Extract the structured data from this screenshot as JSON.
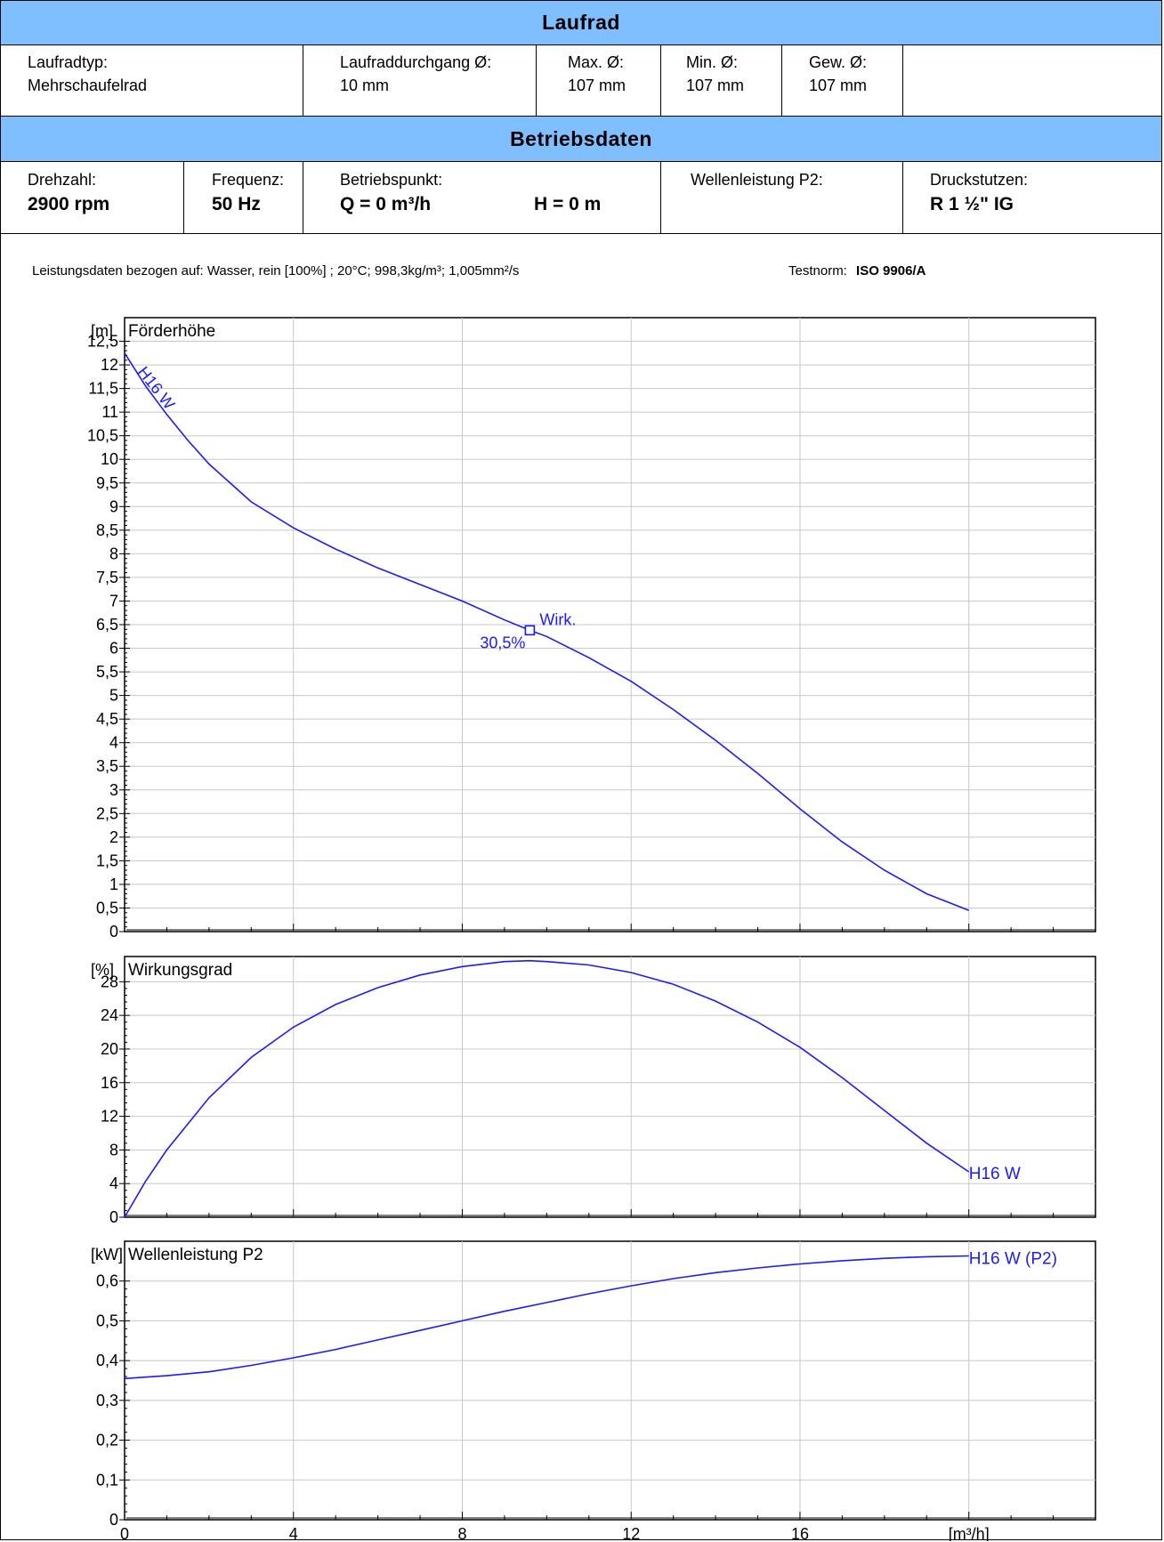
{
  "laufrad": {
    "title": "Laufrad",
    "typ_label": "Laufradtyp:",
    "typ_value": "Mehrschaufelrad",
    "durchgang_label": "Laufraddurchgang  Ø:",
    "durchgang_value": "10 mm",
    "max_label": "Max.  Ø:",
    "max_value": "107 mm",
    "min_label": "Min.  Ø:",
    "min_value": "107 mm",
    "gew_label": "Gew.  Ø:",
    "gew_value": "107 mm"
  },
  "betrieb": {
    "title": "Betriebsdaten",
    "drehzahl_label": "Drehzahl:",
    "drehzahl_value": "2900 rpm",
    "frequenz_label": "Frequenz:",
    "frequenz_value": "50 Hz",
    "punkt_label": "Betriebspunkt:",
    "q_value": "Q = 0 m³/h",
    "h_value": "H = 0 m",
    "welle_label": "Wellenleistung P2:",
    "druck_label": "Druckstutzen:",
    "druck_value": "R 1 ½\" IG"
  },
  "notes": {
    "bezug": "Leistungsdaten bezogen auf: Wasser, rein [100%] ; 20°C; 998,3kg/m³; 1,005mm²/s",
    "testnorm_label": "Testnorm:",
    "testnorm_value": "ISO 9906/A"
  },
  "chart_data": [
    {
      "type": "line",
      "title": "Förderhöhe",
      "ylabel": "[m]",
      "xlim": [
        0,
        23
      ],
      "ylim": [
        0,
        13
      ],
      "yticks": [
        0,
        0.5,
        1,
        1.5,
        2,
        2.5,
        3,
        3.5,
        4,
        4.5,
        5,
        5.5,
        6,
        6.5,
        7,
        7.5,
        8,
        8.5,
        9,
        9.5,
        10,
        10.5,
        11,
        11.5,
        12,
        12.5
      ],
      "ytick_labels": [
        "0",
        "0,5",
        "1",
        "1,5",
        "2",
        "2,5",
        "3",
        "3,5",
        "4",
        "4,5",
        "5",
        "5,5",
        "6",
        "6,5",
        "7",
        "7,5",
        "8",
        "8,5",
        "9",
        "9,5",
        "10",
        "10,5",
        "11",
        "11,5",
        "12",
        "12,5"
      ],
      "grid": true,
      "series": [
        {
          "name": "H16 W",
          "x": [
            0,
            0.5,
            1,
            1.5,
            2,
            3,
            4,
            5,
            6,
            7,
            8,
            9,
            9.6,
            10,
            11,
            12,
            13,
            14,
            15,
            16,
            17,
            18,
            19,
            20
          ],
          "y": [
            12.25,
            11.55,
            10.95,
            10.4,
            9.9,
            9.1,
            8.55,
            8.1,
            7.7,
            7.35,
            7.0,
            6.6,
            6.38,
            6.25,
            5.8,
            5.3,
            4.7,
            4.05,
            3.35,
            2.6,
            1.9,
            1.3,
            0.8,
            0.45
          ]
        }
      ],
      "marker": {
        "x": 9.6,
        "y": 6.38,
        "label": "Wirk.",
        "value_label": "30,5%"
      }
    },
    {
      "type": "line",
      "title": "Wirkungsgrad",
      "ylabel": "[%]",
      "xlim": [
        0,
        23
      ],
      "ylim": [
        0,
        31
      ],
      "yticks": [
        0,
        4,
        8,
        12,
        16,
        20,
        24,
        28
      ],
      "ytick_labels": [
        "0",
        "4",
        "8",
        "12",
        "16",
        "20",
        "24",
        "28"
      ],
      "grid": true,
      "series": [
        {
          "name": "H16 W",
          "x": [
            0,
            0.5,
            1,
            2,
            3,
            4,
            5,
            6,
            7,
            8,
            9,
            9.6,
            10,
            11,
            12,
            13,
            14,
            15,
            16,
            17,
            18,
            19,
            20
          ],
          "y": [
            0,
            4.3,
            8,
            14.2,
            19,
            22.6,
            25.3,
            27.3,
            28.8,
            29.8,
            30.4,
            30.5,
            30.4,
            30.0,
            29.1,
            27.7,
            25.7,
            23.2,
            20.2,
            16.6,
            12.7,
            8.8,
            5.4
          ]
        }
      ]
    },
    {
      "type": "line",
      "title": "Wellenleistung P2",
      "ylabel": "[kW]",
      "xlabel": "[m³/h]",
      "xlim": [
        0,
        23
      ],
      "ylim": [
        0,
        0.7
      ],
      "xticks": [
        0,
        4,
        8,
        12,
        16
      ],
      "yticks": [
        0,
        0.1,
        0.2,
        0.3,
        0.4,
        0.5,
        0.6
      ],
      "ytick_labels": [
        "0",
        "0,1",
        "0,2",
        "0,3",
        "0,4",
        "0,5",
        "0,6"
      ],
      "grid": true,
      "series": [
        {
          "name": "H16 W (P2)",
          "x": [
            0,
            1,
            2,
            3,
            4,
            5,
            6,
            7,
            8,
            9,
            10,
            11,
            12,
            13,
            14,
            15,
            16,
            17,
            18,
            19,
            20
          ],
          "y": [
            0.355,
            0.362,
            0.372,
            0.388,
            0.407,
            0.428,
            0.452,
            0.476,
            0.5,
            0.524,
            0.546,
            0.568,
            0.588,
            0.606,
            0.621,
            0.633,
            0.643,
            0.651,
            0.657,
            0.661,
            0.663
          ]
        }
      ]
    }
  ]
}
